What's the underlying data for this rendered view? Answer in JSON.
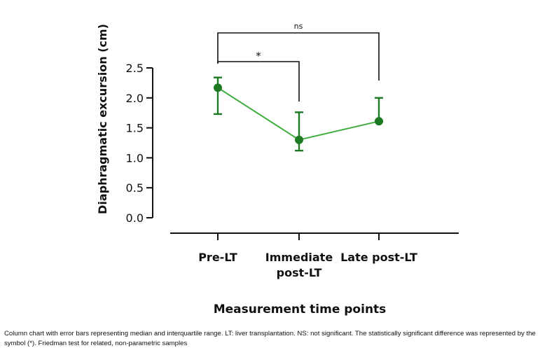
{
  "chart_data": {
    "type": "line",
    "title": "",
    "xlabel": "Measurement time points",
    "ylabel": "Diaphragmatic excursion (cm)",
    "ylim": [
      0,
      2.5
    ],
    "yticks": [
      "0.0",
      "0.5",
      "1.0",
      "1.5",
      "2.0",
      "2.5"
    ],
    "categories": [
      [
        "Pre-LT"
      ],
      [
        "Immediate",
        "post-LT"
      ],
      [
        "Late post-LT"
      ]
    ],
    "series": [
      {
        "name": "Median",
        "values": [
          2.17,
          1.3,
          1.61
        ],
        "lower": [
          1.73,
          1.12,
          1.61
        ],
        "upper": [
          2.34,
          1.76,
          2.0
        ]
      }
    ],
    "annotations": [
      {
        "from": 0,
        "to": 1,
        "label": "*"
      },
      {
        "from": 0,
        "to": 2,
        "label": "ns"
      }
    ],
    "line_color": "#3fae3f",
    "marker_color": "#1d7a22"
  },
  "caption": "Column chart with error bars representing median and interquartile range. LT: liver transplantation. NS: not significant. The statistically significant difference was represented by the symbol (*). Friedman test for related, non-parametric samples"
}
